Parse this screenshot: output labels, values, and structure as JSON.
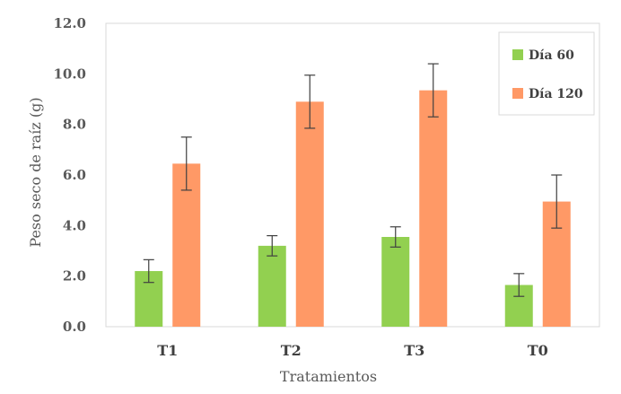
{
  "chart_data": {
    "type": "bar",
    "title": "",
    "xlabel": "Tratamientos",
    "ylabel": "Peso seco de raíz  (g)",
    "ylim": [
      0,
      12
    ],
    "yticks": [
      "0.0",
      "2.0",
      "4.0",
      "6.0",
      "8.0",
      "10.0",
      "12.0"
    ],
    "grid": false,
    "legend_position": "top-right",
    "categories": [
      "T1",
      "T2",
      "T3",
      "T0"
    ],
    "series": [
      {
        "name": "Día 60",
        "color": "#92d050",
        "values": [
          2.2,
          3.2,
          3.55,
          1.65
        ],
        "errors": [
          0.45,
          0.4,
          0.4,
          0.45
        ]
      },
      {
        "name": "Día 120",
        "color": "#ff9966",
        "values": [
          6.45,
          8.9,
          9.35,
          4.95
        ],
        "errors": [
          1.05,
          1.05,
          1.05,
          1.05
        ]
      }
    ]
  }
}
